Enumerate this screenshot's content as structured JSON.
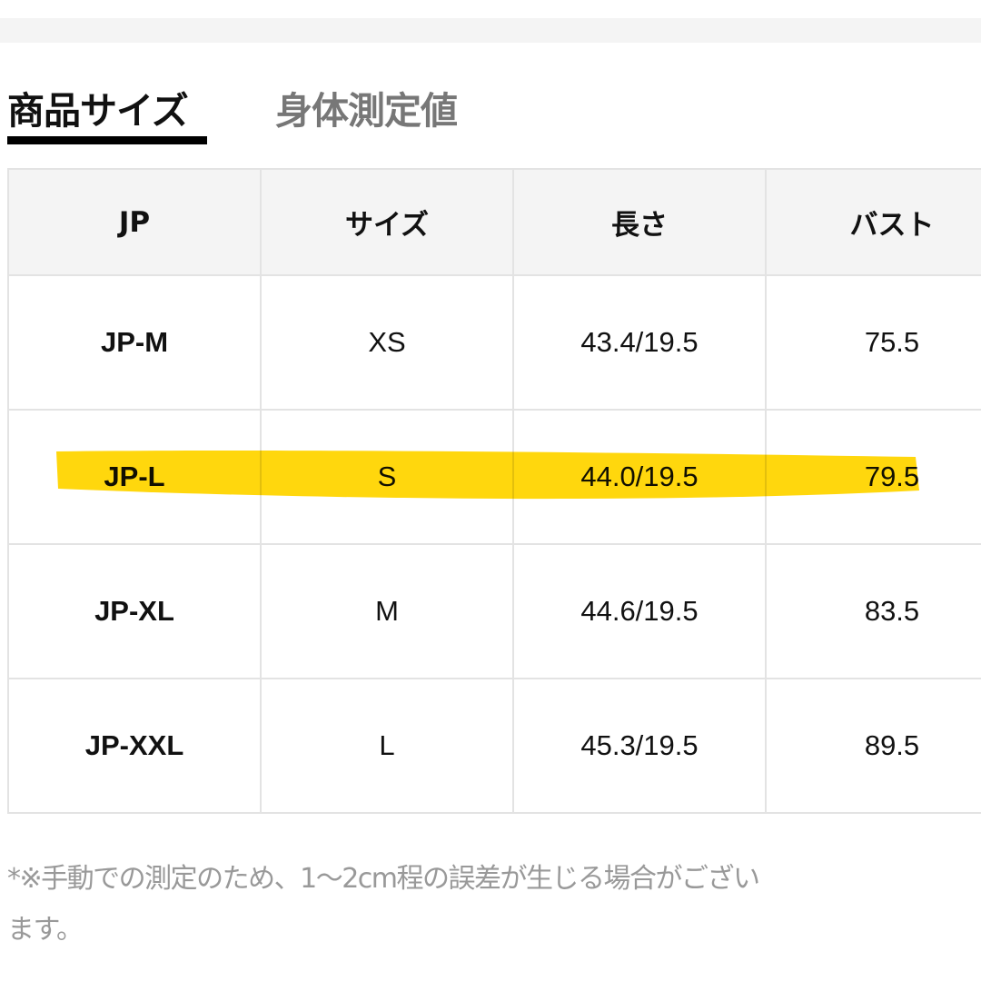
{
  "tabs": [
    {
      "label": "商品サイズ",
      "active": true
    },
    {
      "label": "身体測定値",
      "active": false
    }
  ],
  "table": {
    "headers": [
      "JP",
      "サイズ",
      "長さ",
      "バスト"
    ],
    "rows": [
      [
        "JP-M",
        "XS",
        "43.4/19.5",
        "75.5"
      ],
      [
        "JP-L",
        "S",
        "44.0/19.5",
        "79.5"
      ],
      [
        "JP-XL",
        "M",
        "44.6/19.5",
        "83.5"
      ],
      [
        "JP-XXL",
        "L",
        "45.3/19.5",
        "89.5"
      ]
    ],
    "highlighted_row": "JP-L"
  },
  "note": {
    "lines": [
      "*※手動での測定のため、1〜2cm程の誤差が生じる場合がござい",
      "ます。"
    ]
  },
  "colors": {
    "highlight": "#ffd500",
    "tab_active": "#111111",
    "tab_inactive": "#777777",
    "header_bg": "#f4f4f4",
    "note": "#999999"
  }
}
